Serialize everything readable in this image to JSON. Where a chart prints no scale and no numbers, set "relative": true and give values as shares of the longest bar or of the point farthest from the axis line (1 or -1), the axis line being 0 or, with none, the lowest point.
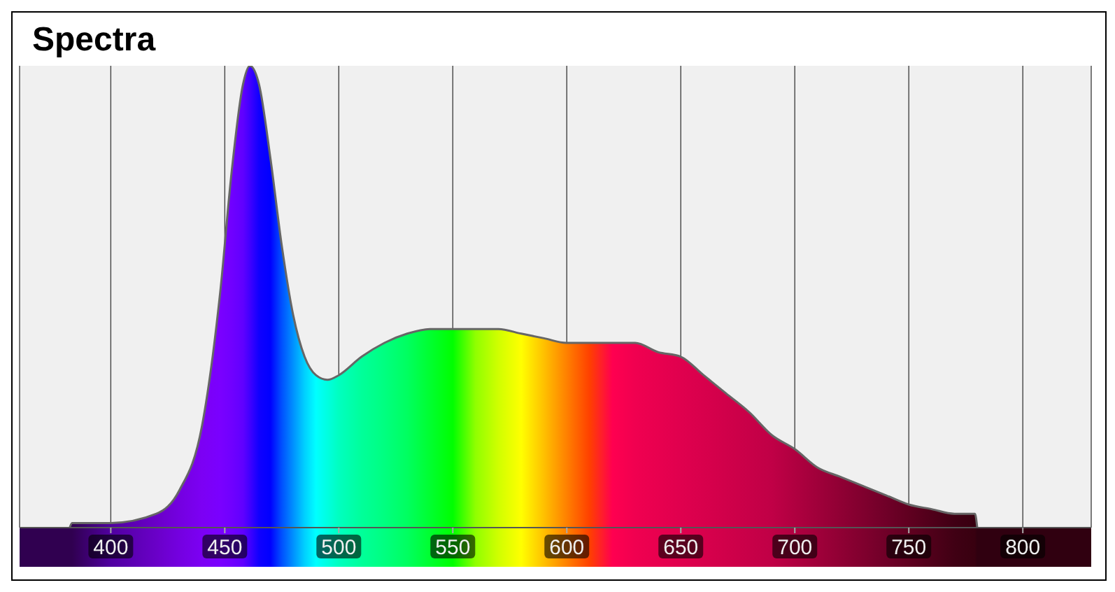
{
  "chart_data": {
    "type": "area",
    "title": "Spectra",
    "relative": true,
    "grid": "x",
    "xlim": [
      360,
      830
    ],
    "xticks": [
      400,
      450,
      500,
      550,
      600,
      650,
      700,
      750,
      800
    ],
    "x": [
      382,
      383,
      400,
      420,
      430,
      440,
      448,
      453,
      458,
      461,
      465,
      470,
      475,
      480,
      485,
      490,
      495,
      500,
      510,
      520,
      530,
      540,
      550,
      560,
      570,
      580,
      590,
      600,
      610,
      620,
      630,
      640,
      650,
      660,
      670,
      680,
      690,
      700,
      710,
      720,
      730,
      740,
      750,
      760,
      770,
      779,
      780
    ],
    "series": [
      {
        "color": "#666666",
        "values": [
          0,
          0.01,
          0.01,
          0.03,
          0.08,
          0.22,
          0.51,
          0.77,
          0.96,
          1,
          0.96,
          0.8,
          0.61,
          0.46,
          0.37,
          0.33,
          0.32,
          0.33,
          0.37,
          0.4,
          0.42,
          0.43,
          0.43,
          0.43,
          0.43,
          0.42,
          0.41,
          0.4,
          0.4,
          0.4,
          0.4,
          0.38,
          0.37,
          0.33,
          0.29,
          0.25,
          0.2,
          0.17,
          0.13,
          0.11,
          0.09,
          0.07,
          0.05,
          0.04,
          0.03,
          0.03,
          0
        ],
        "colors": [
          "#300050",
          "#300050",
          "#5000a0",
          "#6a00c8",
          "#7400e0",
          "#7c00f4",
          "#7a00ff",
          "#7000ff",
          "#6000ff",
          "#4000ff",
          "#1000ff",
          "#0000ff",
          "#0050ff",
          "#0090ff",
          "#00d0ff",
          "#00ffff",
          "#00ffe0",
          "#00ffc0",
          "#00ff9a",
          "#00ff80",
          "#00ff60",
          "#00ff30",
          "#00ff00",
          "#90ff00",
          "#d0ff00",
          "#ffff00",
          "#ffc000",
          "#ff8000",
          "#ff4000",
          "#ff0050",
          "#f00050",
          "#e8004f",
          "#e0004e",
          "#d8004c",
          "#d0004a",
          "#c80048",
          "#c00046",
          "#b00040",
          "#a0003a",
          "#900034",
          "#80002e",
          "#700028",
          "#600020",
          "#50001a",
          "#400014",
          "#380010",
          "#300010"
        ]
      }
    ]
  }
}
